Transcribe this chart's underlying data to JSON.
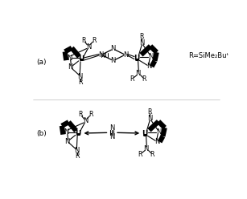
{
  "background_color": "#ffffff",
  "fig_width": 3.07,
  "fig_height": 2.48,
  "dpi": 100,
  "label_a": "(a)",
  "label_b": "(b)",
  "r_label": "R=SiMe₂Buᵗ"
}
